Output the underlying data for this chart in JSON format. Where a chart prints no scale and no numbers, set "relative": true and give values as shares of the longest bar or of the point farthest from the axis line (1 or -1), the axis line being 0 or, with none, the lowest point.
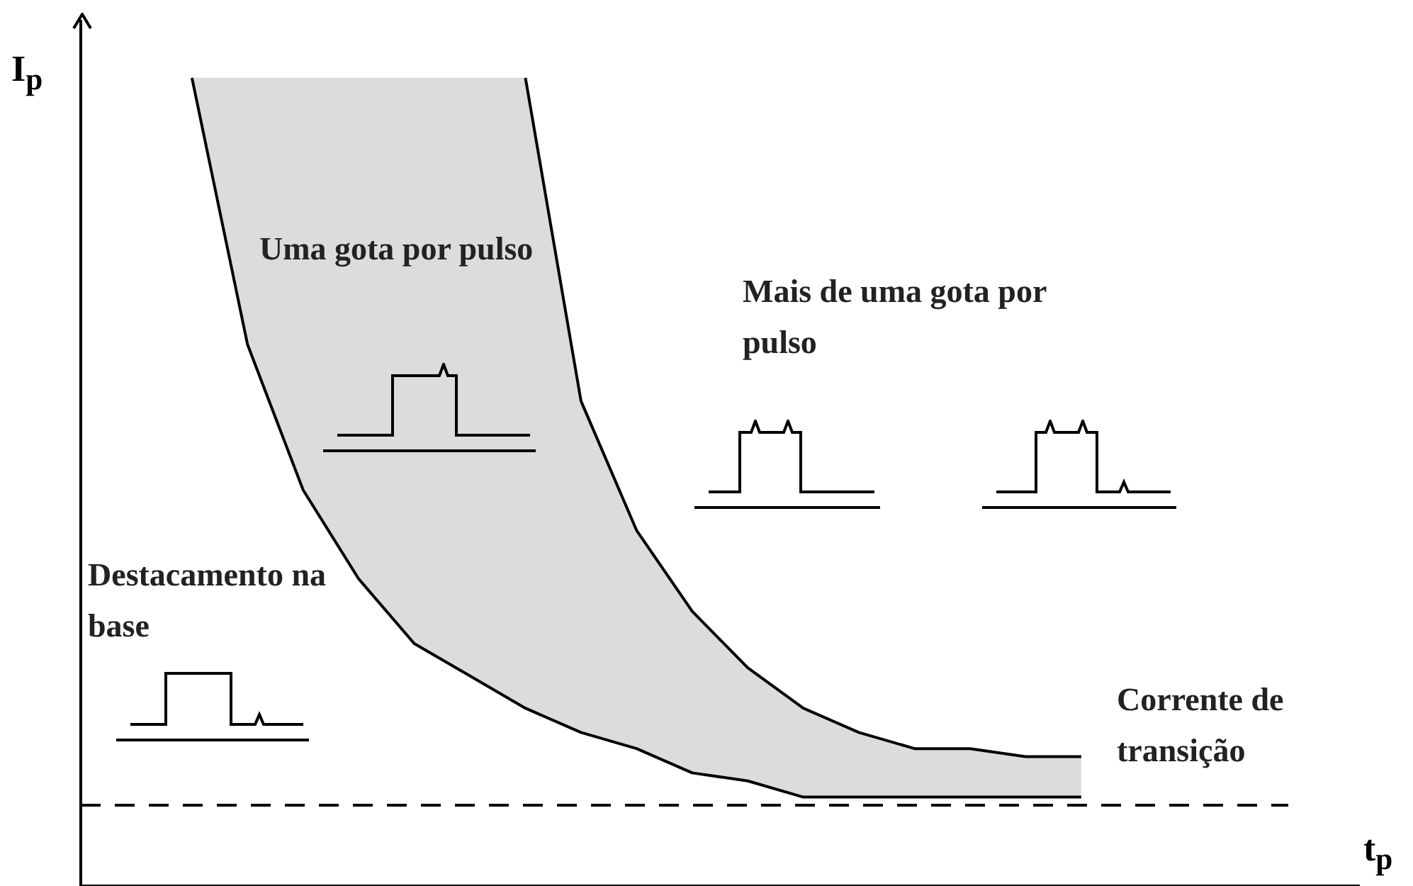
{
  "chart_data": {
    "type": "line",
    "relative": true,
    "xlabel": "t$_{p}$",
    "ylabel": "I$_{p}$",
    "categories": [
      null,
      null,
      null,
      null,
      null,
      null,
      null,
      null,
      null,
      null,
      null,
      null,
      null,
      null,
      null,
      null,
      null,
      null,
      null,
      null,
      null,
      null,
      null,
      null
    ],
    "series": [
      {
        "color": "#000000",
        "values": [
          null,
          null,
          1.0,
          0.67,
          0.49,
          0.38,
          0.3,
          0.26,
          0.22,
          0.19,
          0.17,
          0.14,
          0.13,
          0.11,
          0.11,
          0.11,
          0.11,
          0.11,
          0.11,
          null,
          null,
          null,
          null,
          null
        ]
      },
      {
        "color": "#000000",
        "values": [
          null,
          null,
          null,
          null,
          null,
          null,
          null,
          null,
          1.0,
          0.6,
          0.44,
          0.34,
          0.27,
          0.22,
          0.19,
          0.17,
          0.17,
          0.16,
          0.16,
          null,
          null,
          null,
          null,
          null
        ]
      }
    ],
    "ref_lines": [
      {
        "axis": "y",
        "value": 0.1,
        "label": "Corrente de transição",
        "line_style": "dashed",
        "color": "#000000"
      }
    ],
    "annotations": [
      "Uma gota por pulso",
      "Mais de uma gota por pulso",
      "Destacamento na base"
    ],
    "marker": "none",
    "line_style": "solid"
  }
}
